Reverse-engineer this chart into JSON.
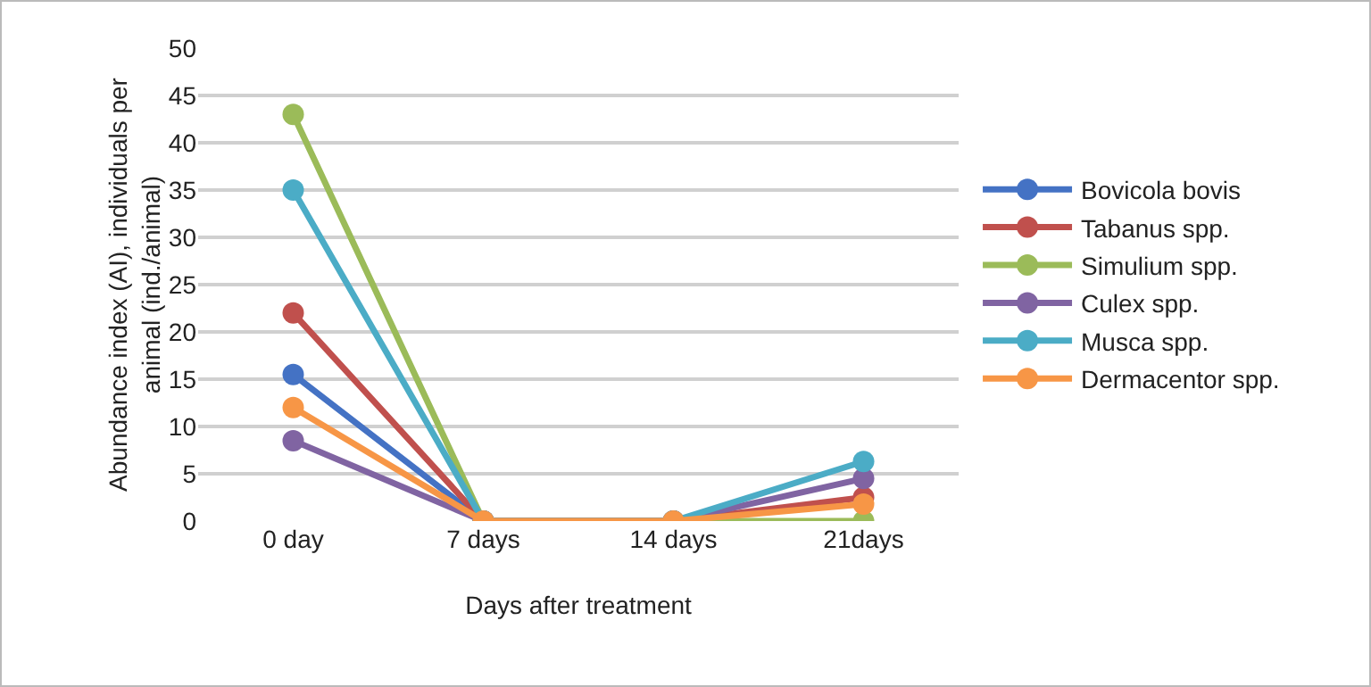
{
  "chart_data": {
    "type": "line",
    "xlabel": "Days after treatment",
    "ylabel": "Abundance index (AI), individuals per animal (ind./animal)",
    "categories": [
      "0 day",
      "7 days",
      "14 days",
      "21days"
    ],
    "series": [
      {
        "name": "Bovicola bovis",
        "color": "#4472c4",
        "values": [
          15.5,
          0,
          0,
          null
        ]
      },
      {
        "name": "Tabanus spp.",
        "color": "#c0504d",
        "values": [
          22,
          0,
          0,
          2.5
        ]
      },
      {
        "name": "Simulium spp.",
        "color": "#9bbb59",
        "values": [
          43,
          0,
          0,
          0
        ]
      },
      {
        "name": "Culex spp.",
        "color": "#8064a2",
        "values": [
          8.5,
          0,
          0,
          4.5
        ]
      },
      {
        "name": "Musca spp.",
        "color": "#4bacc6",
        "values": [
          35,
          0,
          0,
          6.3
        ]
      },
      {
        "name": "Dermacentor spp.",
        "color": "#f79646",
        "values": [
          12,
          0,
          0,
          1.8
        ]
      }
    ],
    "ylim": [
      0,
      50
    ],
    "yticks": [
      0,
      5,
      10,
      15,
      20,
      25,
      30,
      35,
      40,
      45,
      50
    ],
    "grid": "y",
    "legend": "right",
    "marker": "circle",
    "line_style": "solid"
  }
}
